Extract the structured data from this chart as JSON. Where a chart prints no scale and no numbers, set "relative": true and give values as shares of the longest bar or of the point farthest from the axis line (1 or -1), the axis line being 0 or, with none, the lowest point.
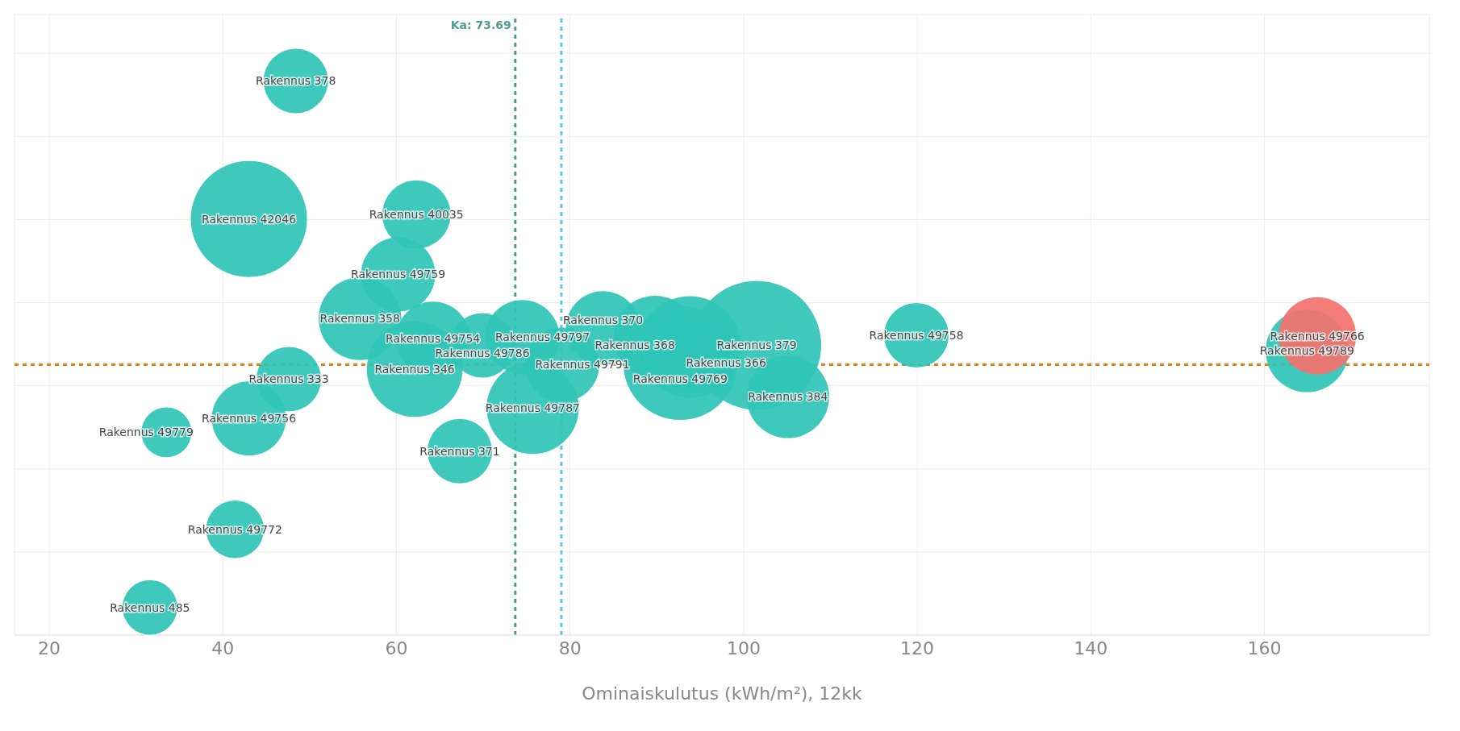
{
  "chart_data": {
    "type": "bubble",
    "xlabel": "Ominaiskulutus (kWh/m²), 12kk",
    "relative": true,
    "xlim": [
      16,
      179
    ],
    "xticks": [
      20,
      40,
      60,
      80,
      100,
      120,
      140,
      160
    ],
    "grid": true,
    "marker": "circle",
    "series": [
      {
        "type": "bubble",
        "x": [
          48.4,
          43.0,
          62.3,
          60.2,
          55.8,
          62.1,
          64.2,
          47.6,
          43.0,
          33.5,
          67.3,
          41.4,
          31.6,
          74.5,
          69.9,
          75.7,
          79.1,
          83.8,
          89.8,
          93.8,
          92.7,
          101.5,
          105.1,
          119.9,
          164.9,
          166.1
        ],
        "values": [
          1.0,
          0.751,
          0.759,
          0.651,
          0.571,
          0.48,
          0.535,
          0.462,
          0.391,
          0.366,
          0.332,
          0.191,
          0.05,
          0.538,
          0.523,
          0.41,
          0.488,
          0.554,
          0.538,
          0.52,
          0.491,
          0.523,
          0.43,
          0.541,
          0.513,
          0.54
        ],
        "sizes": [
          0.25,
          0.81,
          0.28,
          0.33,
          0.41,
          0.55,
          0.33,
          0.25,
          0.33,
          0.15,
          0.25,
          0.2,
          0.18,
          0.33,
          0.25,
          0.51,
          0.33,
          0.33,
          0.41,
          0.62,
          0.78,
          1.0,
          0.41,
          0.25,
          0.41,
          0.36
        ],
        "colors": [
          "#2ec4b6",
          "#2ec4b6",
          "#2ec4b6",
          "#2ec4b6",
          "#2ec4b6",
          "#2ec4b6",
          "#2ec4b6",
          "#2ec4b6",
          "#2ec4b6",
          "#2ec4b6",
          "#2ec4b6",
          "#2ec4b6",
          "#2ec4b6",
          "#2ec4b6",
          "#2ec4b6",
          "#2ec4b6",
          "#2ec4b6",
          "#2ec4b6",
          "#2ec4b6",
          "#2ec4b6",
          "#2ec4b6",
          "#2ec4b6",
          "#2ec4b6",
          "#2ec4b6",
          "#2ec4b6",
          "#f4716e"
        ]
      }
    ],
    "ref_lines": [
      {
        "axis": "x",
        "value": 73.69,
        "label": "Ka: 73.69",
        "color": "#4a9e8e",
        "line_style": "dashed"
      },
      {
        "axis": "x",
        "value": 79,
        "color": "#5bc8e0",
        "line_style": "dashed"
      },
      {
        "axis": "y",
        "value": 0.488,
        "color": "#e8820c",
        "line_style": "dashed"
      }
    ],
    "annotations": [
      {
        "text": "Rakennus 378",
        "x": 48.4,
        "y": 1.0
      },
      {
        "text": "Rakennus 42046",
        "x": 43.0,
        "y": 0.751
      },
      {
        "text": "Rakennus 40035",
        "x": 62.3,
        "y": 0.759
      },
      {
        "text": "Rakennus 49759",
        "x": 60.2,
        "y": 0.651
      },
      {
        "text": "Rakennus 358",
        "x": 55.8,
        "y": 0.571
      },
      {
        "text": "Rakennus 346",
        "x": 62.1,
        "y": 0.48
      },
      {
        "text": "Rakennus 49754",
        "x": 64.2,
        "y": 0.535
      },
      {
        "text": "Rakennus 333",
        "x": 47.6,
        "y": 0.462
      },
      {
        "text": "Rakennus 49756",
        "x": 43.0,
        "y": 0.391
      },
      {
        "text": "Rakennus 49779",
        "x": 33.5,
        "y": 0.366
      },
      {
        "text": "Rakennus 371",
        "x": 67.3,
        "y": 0.332
      },
      {
        "text": "Rakennus 49772",
        "x": 41.4,
        "y": 0.191
      },
      {
        "text": "Rakennus 485",
        "x": 31.6,
        "y": 0.05
      },
      {
        "text": "Rakennus 49797",
        "x": 74.5,
        "y": 0.538
      },
      {
        "text": "Rakennus 49786",
        "x": 69.9,
        "y": 0.523
      },
      {
        "text": "Rakennus 49787",
        "x": 75.7,
        "y": 0.41
      },
      {
        "text": "Rakennus 49791",
        "x": 79.1,
        "y": 0.488
      },
      {
        "text": "Rakennus 370",
        "x": 83.8,
        "y": 0.554
      },
      {
        "text": "Rakennus 368",
        "x": 89.8,
        "y": 0.538
      },
      {
        "text": "Rakennus 366",
        "x": 93.8,
        "y": 0.52
      },
      {
        "text": "Rakennus 49769",
        "x": 92.7,
        "y": 0.491
      },
      {
        "text": "Rakennus 379",
        "x": 101.5,
        "y": 0.523
      },
      {
        "text": "Rakennus 384",
        "x": 105.1,
        "y": 0.43
      },
      {
        "text": "Rakennus 49758",
        "x": 119.9,
        "y": 0.541
      },
      {
        "text": "Rakennus 49766",
        "x": 166.1,
        "y": 0.54
      },
      {
        "text": "Rakennus 49789",
        "x": 164.9,
        "y": 0.513
      }
    ]
  }
}
